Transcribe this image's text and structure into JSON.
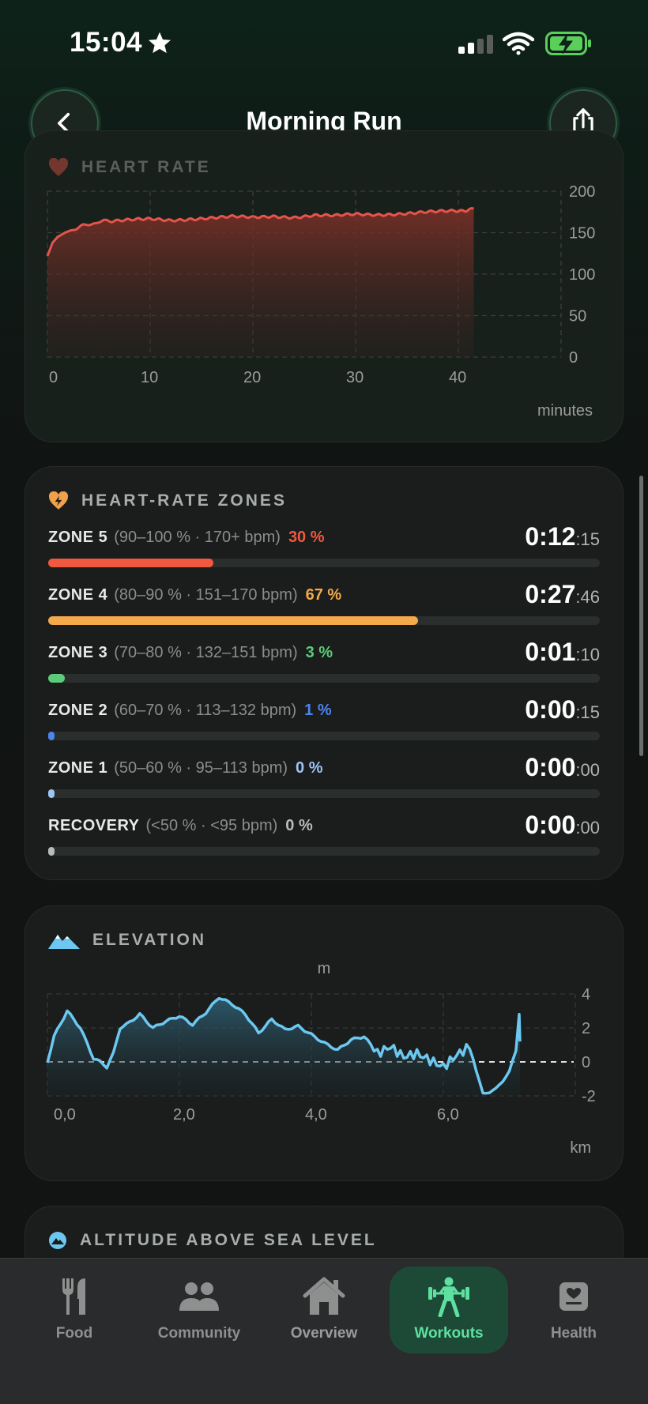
{
  "status": {
    "time": "15:04"
  },
  "nav": {
    "title": "Morning Run"
  },
  "heart_rate": {
    "title": "HEART RATE",
    "x_unit": "minutes",
    "y_ticks": [
      "200",
      "150",
      "100",
      "50",
      "0"
    ],
    "x_ticks": [
      "0",
      "10",
      "20",
      "30",
      "40"
    ],
    "color": "#e5544a"
  },
  "zones_card": {
    "title": "HEART-RATE ZONES",
    "zones": [
      {
        "name": "ZONE 5",
        "range": "(90–100 % · 170+ bpm)",
        "pct": "30 %",
        "fill": 0.3,
        "color": "#f0583f",
        "dur_main": "0:12",
        "dur_sec": ":15"
      },
      {
        "name": "ZONE 4",
        "range": "(80–90 % · 151–170 bpm)",
        "pct": "67 %",
        "fill": 0.67,
        "color": "#f4a94a",
        "dur_main": "0:27",
        "dur_sec": ":46"
      },
      {
        "name": "ZONE 3",
        "range": "(70–80 % · 132–151 bpm)",
        "pct": "3 %",
        "fill": 0.03,
        "color": "#5dcc7a",
        "dur_main": "0:01",
        "dur_sec": ":10"
      },
      {
        "name": "ZONE 2",
        "range": "(60–70 % · 113–132 bpm)",
        "pct": "1 %",
        "fill": 0.01,
        "color": "#4c84f0",
        "dur_main": "0:00",
        "dur_sec": ":15"
      },
      {
        "name": "ZONE 1",
        "range": "(50–60 % · 95–113 bpm)",
        "pct": "0 %",
        "fill": 0.0,
        "color": "#9ec3f5",
        "dur_main": "0:00",
        "dur_sec": ":00"
      },
      {
        "name": "RECOVERY",
        "range": "(<50 % · <95 bpm)",
        "pct": "0 %",
        "fill": 0.0,
        "color": "#b8bbba",
        "dur_main": "0:00",
        "dur_sec": ":00"
      }
    ]
  },
  "elevation": {
    "title": "ELEVATION",
    "y_unit": "m",
    "x_unit": "km",
    "y_ticks": [
      "4",
      "2",
      "0",
      "-2"
    ],
    "x_ticks": [
      "0,0",
      "2,0",
      "4,0",
      "6,0"
    ],
    "color": "#6cc8f0"
  },
  "altitude": {
    "title": "ALTITUDE ABOVE SEA LEVEL"
  },
  "tabs": [
    {
      "label": "Food"
    },
    {
      "label": "Community"
    },
    {
      "label": "Overview"
    },
    {
      "label": "Workouts"
    },
    {
      "label": "Health"
    }
  ],
  "chart_data": [
    {
      "type": "area",
      "title": "HEART RATE",
      "xlabel": "minutes",
      "ylabel": "",
      "xlim": [
        0,
        50
      ],
      "ylim": [
        0,
        200
      ],
      "x": [
        0,
        0.5,
        1,
        2,
        3,
        4,
        5,
        6,
        8,
        10,
        12,
        14,
        16,
        18,
        20,
        22,
        24,
        26,
        28,
        30,
        32,
        34,
        36,
        38,
        40,
        41.5
      ],
      "y": [
        122,
        138,
        145,
        152,
        156,
        160,
        163,
        164,
        165,
        166,
        165,
        167,
        168,
        169,
        168,
        170,
        169,
        171,
        170,
        172,
        172,
        173,
        174,
        175,
        176,
        179
      ]
    },
    {
      "type": "area",
      "title": "ELEVATION",
      "xlabel": "km",
      "ylabel": "m",
      "xlim": [
        0,
        8.0
      ],
      "ylim": [
        -2,
        4
      ],
      "x": [
        0,
        0.1,
        0.3,
        0.5,
        0.7,
        0.8,
        0.9,
        1.0,
        1.1,
        1.2,
        1.4,
        1.6,
        1.8,
        2.0,
        2.2,
        2.4,
        2.6,
        2.8,
        3.0,
        3.2,
        3.4,
        3.6,
        3.8,
        4.0,
        4.2,
        4.4,
        4.6,
        4.8,
        5.0,
        5.2,
        5.4,
        5.6,
        5.8,
        6.0,
        6.2,
        6.4,
        6.6,
        6.8,
        7.0,
        7.1,
        7.15
      ],
      "y": [
        0,
        1.5,
        3.0,
        2.0,
        0.2,
        0,
        -0.3,
        0.5,
        2.0,
        2.2,
        2.8,
        2.0,
        2.4,
        2.7,
        2.2,
        2.9,
        3.8,
        3.4,
        2.8,
        1.7,
        2.5,
        1.9,
        2.1,
        1.6,
        1.1,
        0.7,
        1.3,
        1.5,
        0.5,
        0.9,
        0.3,
        0.5,
        0.1,
        -0.3,
        0.4,
        0.9,
        -1.9,
        -1.6,
        -0.6,
        0.7,
        2.8
      ]
    }
  ]
}
